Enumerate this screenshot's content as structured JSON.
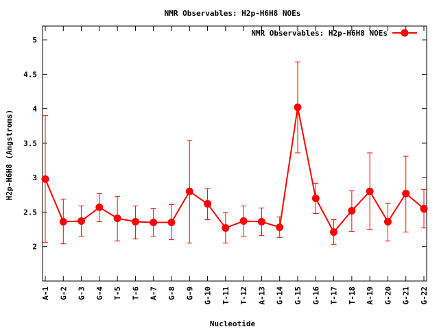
{
  "chart_data": {
    "type": "line",
    "title": "NMR Observables: H2p-H6H8 NOEs",
    "xlabel": "Nucleotide",
    "ylabel": "H2p-H6H8 (Angstroms)",
    "ylim": [
      1.5,
      5.2
    ],
    "yticks": [
      2,
      2.5,
      3,
      3.5,
      4,
      4.5,
      5
    ],
    "ytick_labels": [
      "2",
      "2.5",
      "3",
      "3.5",
      "4",
      "4.5",
      "5"
    ],
    "grid": false,
    "legend_position": "top-right",
    "series_color": "#ff0000",
    "categories": [
      "A-1",
      "G-2",
      "G-3",
      "G-4",
      "T-5",
      "T-6",
      "A-7",
      "G-8",
      "G-9",
      "G-10",
      "T-11",
      "T-12",
      "A-13",
      "G-14",
      "G-15",
      "G-16",
      "T-17",
      "T-18",
      "A-19",
      "G-20",
      "G-21",
      "G-22"
    ],
    "series": [
      {
        "name": "NMR Observables: H2p-H6H8 NOEs",
        "values": [
          2.98,
          2.36,
          2.37,
          2.57,
          2.41,
          2.36,
          2.35,
          2.35,
          2.8,
          2.62,
          2.27,
          2.37,
          2.36,
          2.28,
          4.02,
          2.7,
          2.21,
          2.52,
          2.8,
          2.36,
          2.77,
          2.55
        ],
        "error_low": [
          2.06,
          2.04,
          2.15,
          2.36,
          2.08,
          2.11,
          2.15,
          2.1,
          2.05,
          2.39,
          2.05,
          2.15,
          2.16,
          2.13,
          3.36,
          2.48,
          2.03,
          2.22,
          2.25,
          2.08,
          2.21,
          2.27
        ],
        "error_high": [
          3.9,
          2.69,
          2.59,
          2.77,
          2.73,
          2.59,
          2.55,
          2.61,
          3.54,
          2.84,
          2.49,
          2.59,
          2.56,
          2.43,
          4.68,
          2.92,
          2.39,
          2.81,
          3.36,
          2.63,
          3.31,
          2.83
        ]
      }
    ]
  }
}
